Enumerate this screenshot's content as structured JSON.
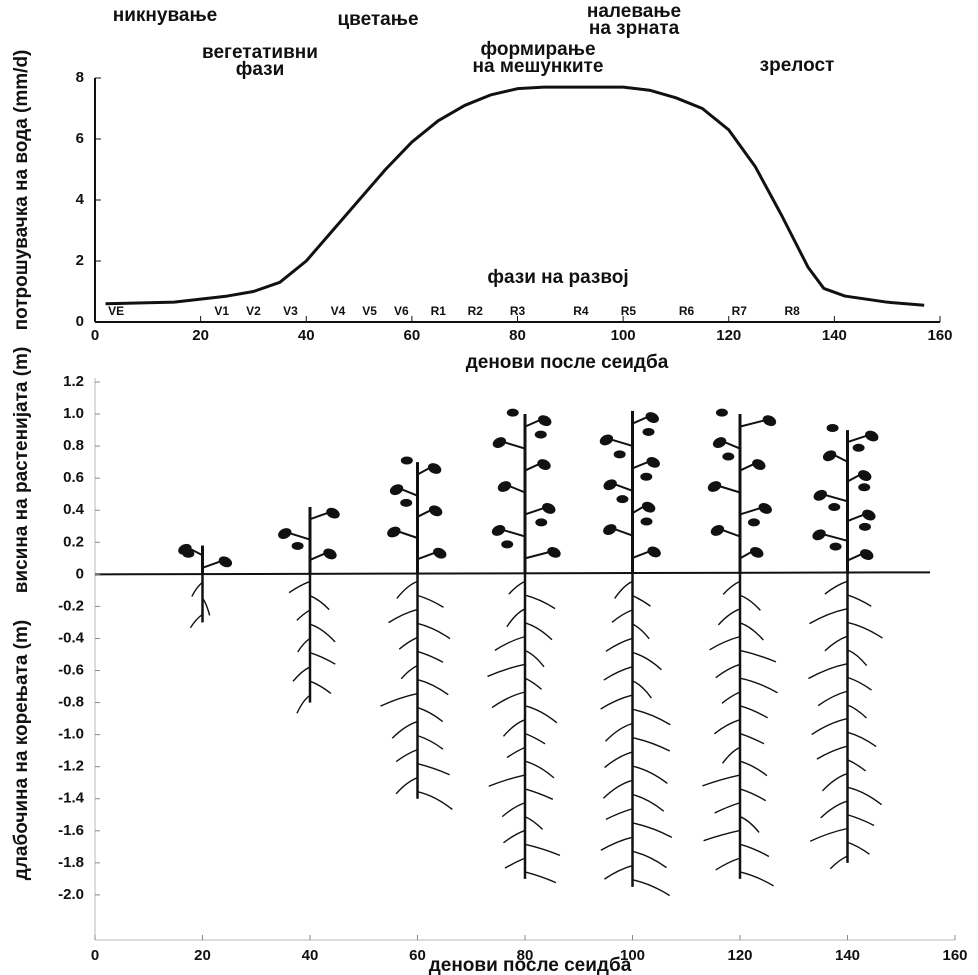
{
  "chart_data": [
    {
      "type": "line",
      "title_lines": [
        [
          "никнување"
        ],
        [
          "вегетативни",
          "фази"
        ],
        [
          "цветање"
        ],
        [
          "формирање",
          "на мешунките"
        ],
        [
          "налевање",
          "на зрната"
        ],
        [
          "зрелост"
        ]
      ],
      "stage_title": "фази на развој",
      "stages": {
        "labels": [
          "VE",
          "V1",
          "V2",
          "V3",
          "V4",
          "V5",
          "V6",
          "R1",
          "R2",
          "R3",
          "R4",
          "R5",
          "R6",
          "R7",
          "R8"
        ],
        "x": [
          4,
          24,
          30,
          37,
          46,
          52,
          58,
          65,
          72,
          80,
          92,
          101,
          112,
          122,
          132
        ]
      },
      "xlabel": "денови после сеидба",
      "ylabel": "потрошувачка на вода (mm/d)",
      "x": [
        2,
        15,
        25,
        30,
        35,
        40,
        45,
        50,
        55,
        60,
        65,
        70,
        75,
        80,
        85,
        90,
        100,
        105,
        110,
        115,
        120,
        125,
        130,
        135,
        138,
        142,
        150,
        157
      ],
      "values": [
        0.6,
        0.65,
        0.85,
        1.0,
        1.3,
        2.0,
        3.0,
        4.0,
        5.0,
        5.9,
        6.6,
        7.1,
        7.45,
        7.65,
        7.7,
        7.7,
        7.7,
        7.6,
        7.35,
        7.0,
        6.3,
        5.1,
        3.5,
        1.8,
        1.1,
        0.85,
        0.65,
        0.55
      ],
      "color": "#111111",
      "xlim": [
        0,
        160
      ],
      "xticks": [
        0,
        20,
        40,
        60,
        80,
        100,
        120,
        140,
        160
      ],
      "ylim": [
        0,
        8
      ],
      "yticks": [
        0,
        2,
        4,
        6,
        8
      ]
    },
    {
      "type": "plants",
      "xlabel": "денови после сеидба",
      "ylabel_top": "висина на растенијата (m)",
      "ylabel_bottom": "длабочина на корењата (m)",
      "x": [
        20,
        40,
        60,
        80,
        100,
        120,
        140
      ],
      "height": [
        0.18,
        0.42,
        0.7,
        1.0,
        1.02,
        1.0,
        0.9
      ],
      "root_depth": [
        -0.3,
        -0.8,
        -1.4,
        -1.9,
        -1.95,
        -1.9,
        -1.8
      ],
      "color": "#111111",
      "xlim": [
        0,
        160
      ],
      "xticks": [
        0,
        20,
        40,
        60,
        80,
        100,
        120,
        140,
        160
      ],
      "ylim": [
        -2.0,
        1.2
      ],
      "yticks": [
        {
          "value": 1.2,
          "label": "1.2"
        },
        {
          "value": 1.0,
          "label": "1.0"
        },
        0.8,
        0.6,
        0.4,
        0.2,
        0,
        -0.2,
        -0.4,
        -0.6,
        -0.8,
        {
          "value": -1.0,
          "label": "-1.0"
        },
        -1.2,
        -1.4,
        -1.6,
        -1.8,
        {
          "value": -2.0,
          "label": "-2.0"
        }
      ]
    }
  ]
}
